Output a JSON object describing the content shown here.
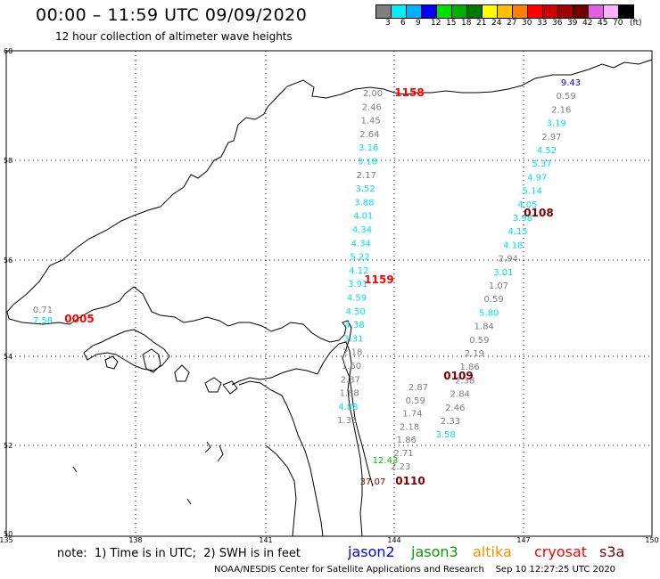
{
  "header": {
    "title": "00:00 – 11:59 UTC 09/09/2020",
    "subtitle": "12 hour collection of altimeter wave heights"
  },
  "scale": {
    "colors": [
      "#7f7f7f",
      "#00f0ff",
      "#00b0ff",
      "#0000ff",
      "#00e000",
      "#00b000",
      "#007800",
      "#ffff00",
      "#ffc000",
      "#ff8000",
      "#ff0000",
      "#d00000",
      "#a00000",
      "#700000",
      "#e060e0",
      "#ffb0ff",
      "#000000"
    ],
    "labels": [
      "3",
      "6",
      "9",
      "12",
      "15",
      "18",
      "21",
      "24",
      "27",
      "30",
      "33",
      "36",
      "39",
      "42",
      "45",
      "70"
    ],
    "unit": "(ft)"
  },
  "axes": {
    "lat_labels": [
      "60",
      "58",
      "56",
      "54",
      "52",
      "50"
    ],
    "lon_labels": [
      "135",
      "138",
      "141",
      "144",
      "147",
      "150"
    ]
  },
  "tracks": [
    {
      "time": "1158",
      "time_color": "#ff0000",
      "points": [
        {
          "v": "2.00",
          "c": "#7f7f7f"
        },
        {
          "v": "2.46",
          "c": "#7f7f7f"
        },
        {
          "v": "1.45",
          "c": "#7f7f7f"
        },
        {
          "v": "2.64",
          "c": "#7f7f7f"
        },
        {
          "v": "3.16",
          "c": "#00e0f0"
        },
        {
          "v": "3.18",
          "c": "#00e0f0"
        },
        {
          "v": "2.17",
          "c": "#7f7f7f"
        },
        {
          "v": "3.52",
          "c": "#00e0f0"
        },
        {
          "v": "3.88",
          "c": "#00e0f0"
        },
        {
          "v": "4.01",
          "c": "#00e0f0"
        },
        {
          "v": "4.34",
          "c": "#00e0f0"
        },
        {
          "v": "4.34",
          "c": "#00e0f0"
        },
        {
          "v": "5.22",
          "c": "#00e0f0"
        },
        {
          "v": "4.12",
          "c": "#00e0f0"
        },
        {
          "v": "3.91",
          "c": "#00e0f0"
        },
        {
          "v": "4.59",
          "c": "#00e0f0"
        },
        {
          "v": "4.50",
          "c": "#00e0f0"
        },
        {
          "v": "4.38",
          "c": "#00e0f0"
        },
        {
          "v": "3.31",
          "c": "#00e0f0"
        },
        {
          "v": "2.18",
          "c": "#7f7f7f"
        },
        {
          "v": "1.60",
          "c": "#7f7f7f"
        },
        {
          "v": "2.37",
          "c": "#7f7f7f"
        },
        {
          "v": "1.88",
          "c": "#7f7f7f"
        },
        {
          "v": "4.88",
          "c": "#00e0f0"
        },
        {
          "v": "1.33",
          "c": "#7f7f7f"
        }
      ]
    },
    {
      "time": "1159",
      "time_color": "#ff0000"
    },
    {
      "time": "0108",
      "time_color": "#800000",
      "points": [
        {
          "v": "9.43",
          "c": "#0000ff"
        },
        {
          "v": "0.59",
          "c": "#7f7f7f"
        },
        {
          "v": "2.16",
          "c": "#7f7f7f"
        },
        {
          "v": "3.19",
          "c": "#00e0f0"
        },
        {
          "v": "2.97",
          "c": "#7f7f7f"
        },
        {
          "v": "4.52",
          "c": "#00e0f0"
        },
        {
          "v": "5.37",
          "c": "#00e0f0"
        },
        {
          "v": "4.97",
          "c": "#00e0f0"
        },
        {
          "v": "5.14",
          "c": "#00e0f0"
        },
        {
          "v": "4.05",
          "c": "#00e0f0"
        },
        {
          "v": "3.98",
          "c": "#00e0f0"
        },
        {
          "v": "4.15",
          "c": "#00e0f0"
        },
        {
          "v": "4.18",
          "c": "#00e0f0"
        },
        {
          "v": "2.94",
          "c": "#7f7f7f"
        },
        {
          "v": "3.01",
          "c": "#00e0f0"
        },
        {
          "v": "1.07",
          "c": "#7f7f7f"
        },
        {
          "v": "0.59",
          "c": "#7f7f7f"
        },
        {
          "v": "5.80",
          "c": "#00e0f0"
        },
        {
          "v": "1.84",
          "c": "#7f7f7f"
        },
        {
          "v": "0.59",
          "c": "#7f7f7f"
        },
        {
          "v": "2.19",
          "c": "#7f7f7f"
        },
        {
          "v": "1.86",
          "c": "#7f7f7f"
        },
        {
          "v": "2.38",
          "c": "#7f7f7f"
        },
        {
          "v": "2.84",
          "c": "#7f7f7f"
        },
        {
          "v": "2.46",
          "c": "#7f7f7f"
        },
        {
          "v": "2.33",
          "c": "#7f7f7f"
        },
        {
          "v": "3.58",
          "c": "#00e0f0"
        }
      ]
    },
    {
      "time": "0109",
      "time_color": "#800000",
      "points": [
        {
          "v": "2.87",
          "c": "#7f7f7f"
        },
        {
          "v": "0.59",
          "c": "#7f7f7f"
        },
        {
          "v": "1.74",
          "c": "#7f7f7f"
        },
        {
          "v": "2.18",
          "c": "#7f7f7f"
        },
        {
          "v": "1.86",
          "c": "#7f7f7f"
        },
        {
          "v": "2.71",
          "c": "#7f7f7f"
        },
        {
          "v": "2.23",
          "c": "#7f7f7f"
        },
        {
          "v": "12.43",
          "c": "#00c000"
        },
        {
          "v": "37.07",
          "c": "#800000"
        }
      ]
    },
    {
      "time": "0110",
      "time_color": "#800000"
    },
    {
      "time": "0005",
      "time_color": "#ff0000",
      "points": [
        {
          "v": "0.71",
          "c": "#7f7f7f"
        },
        {
          "v": "7.58",
          "c": "#00e0f0"
        }
      ]
    }
  ],
  "footer": {
    "note": "note:  1) Time is in UTC;  2) SWH is in feet",
    "satellites": [
      {
        "name": "jason2",
        "color": "#0000ff"
      },
      {
        "name": "jason3",
        "color": "#00a000"
      },
      {
        "name": "altika",
        "color": "#ff8c00"
      },
      {
        "name": "cryosat",
        "color": "#ff0000"
      },
      {
        "name": "s3a",
        "color": "#800000"
      }
    ],
    "credit": "NOAA/NESDIS Center for Satellite Applications and Research    Sep 10 12:27:25 UTC 2020"
  }
}
